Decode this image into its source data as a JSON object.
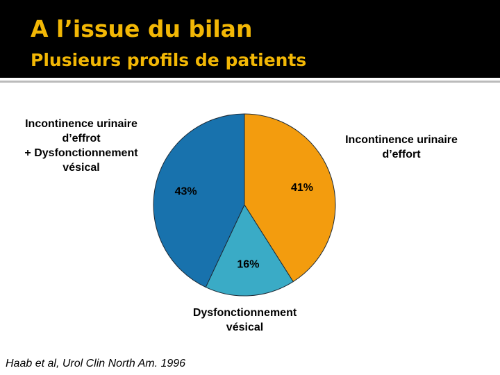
{
  "header": {
    "title": "A l’issue du bilan",
    "subtitle": "Plusieurs profils de patients"
  },
  "chart_data": {
    "type": "pie",
    "categories": [
      "Incontinence urinaire\nd’effort",
      "Dysfonctionnement\nvésical",
      "Incontinence urinaire\nd’effrot\n+ Dysfonctionnement\nvésical"
    ],
    "values": [
      41,
      16,
      43
    ],
    "value_labels": [
      "41%",
      "16%",
      "43%"
    ],
    "colors": [
      "#F39C0E",
      "#3AABC6",
      "#1872AD"
    ]
  },
  "source": "Haab et al, Urol Clin North Am. 1996"
}
